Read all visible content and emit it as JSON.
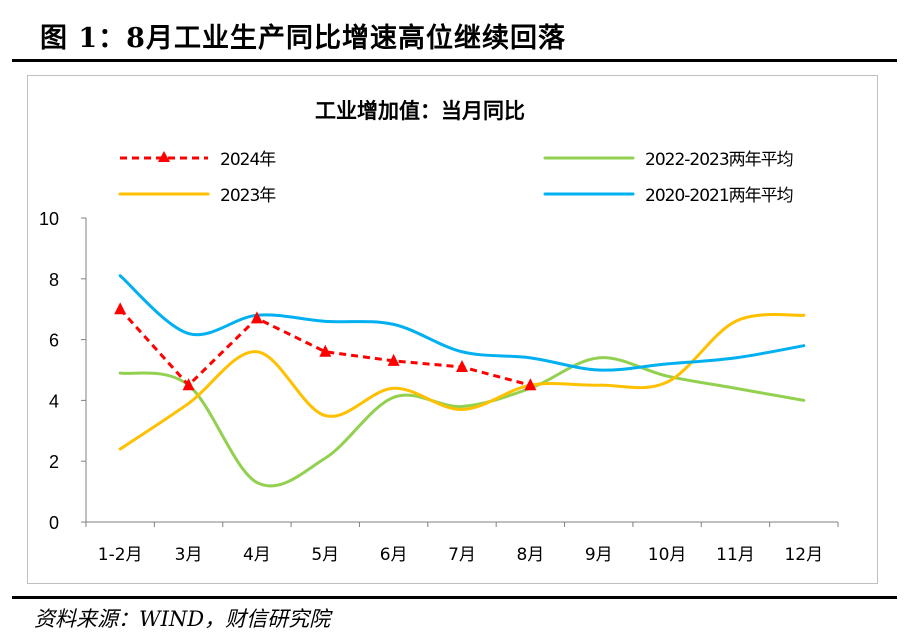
{
  "figure_title": "图 1：8月工业生产同比增速高位继续回落",
  "source": "资料来源：WIND，财信研究院",
  "chart_data": {
    "type": "line",
    "title": "工业增加值：当月同比",
    "categories": [
      "1-2月",
      "3月",
      "4月",
      "5月",
      "6月",
      "7月",
      "8月",
      "9月",
      "10月",
      "11月",
      "12月"
    ],
    "ylim": [
      0,
      10
    ],
    "yticks": [
      "0",
      "2",
      "4",
      "6",
      "8",
      "10"
    ],
    "grid": false,
    "legend_position": "top",
    "series": [
      {
        "name": "2024年",
        "color": "#FF0000",
        "style": "dashed-triangle",
        "values": [
          7.0,
          4.5,
          6.7,
          5.6,
          5.3,
          5.1,
          4.5,
          null,
          null,
          null,
          null
        ]
      },
      {
        "name": "2022-2023两年平均",
        "color": "#92D050",
        "style": "smooth",
        "values": [
          4.9,
          4.5,
          1.3,
          2.1,
          4.1,
          3.8,
          4.4,
          5.4,
          4.8,
          4.4,
          4.0
        ]
      },
      {
        "name": "2023年",
        "color": "#FFC000",
        "style": "smooth",
        "values": [
          2.4,
          3.9,
          5.6,
          3.5,
          4.4,
          3.7,
          4.5,
          4.5,
          4.6,
          6.6,
          6.8
        ]
      },
      {
        "name": "2020-2021两年平均",
        "color": "#00B0F0",
        "style": "smooth",
        "values": [
          8.1,
          6.2,
          6.8,
          6.6,
          6.5,
          5.6,
          5.4,
          5.0,
          5.2,
          5.4,
          5.8
        ]
      }
    ]
  }
}
